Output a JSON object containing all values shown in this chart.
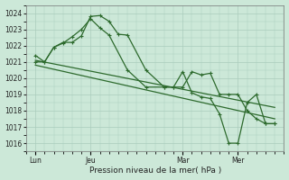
{
  "bg_color": "#cce8d8",
  "grid_color": "#aaccbc",
  "line_color": "#2d6a2d",
  "xlabel": "Pression niveau de la mer( hPa )",
  "ylim": [
    1015.5,
    1024.5
  ],
  "yticks": [
    1016,
    1017,
    1018,
    1019,
    1020,
    1021,
    1022,
    1023,
    1024
  ],
  "xtick_labels": [
    "Lun",
    "Jeu",
    "Mar",
    "Mer"
  ],
  "xtick_positions": [
    0,
    3,
    8,
    11
  ],
  "xlim": [
    -0.5,
    13.5
  ],
  "s1_x": [
    0,
    0.5,
    1,
    1.5,
    2,
    2.5,
    3,
    3.5,
    4,
    4.5,
    5,
    6,
    7,
    7.5,
    8,
    8.5,
    9,
    9.5,
    10,
    10.5,
    11,
    11.5,
    12,
    12.5,
    13
  ],
  "s1_y": [
    1021.4,
    1021.0,
    1021.9,
    1022.2,
    1022.2,
    1022.6,
    1023.8,
    1023.85,
    1023.5,
    1022.7,
    1022.65,
    1020.5,
    1019.45,
    1019.45,
    1019.45,
    1020.4,
    1020.2,
    1020.3,
    1019.0,
    1019.0,
    1019.0,
    1018.0,
    1017.5,
    1017.2,
    1017.2
  ],
  "s2_x": [
    0,
    0.5,
    1,
    1.5,
    2,
    2.5,
    3,
    3.5,
    4,
    5,
    6,
    7,
    7.5,
    8,
    8.5,
    9,
    9.5,
    10,
    10.5,
    11,
    11.5,
    12,
    12.5,
    13
  ],
  "s2_y": [
    1021.0,
    1021.0,
    1021.9,
    1022.15,
    1022.55,
    1023.0,
    1023.65,
    1023.1,
    1022.65,
    1020.5,
    1019.45,
    1019.45,
    1019.45,
    1020.4,
    1019.1,
    1018.85,
    1018.75,
    1017.8,
    1016.0,
    1016.0,
    1018.5,
    1019.0,
    1017.2,
    1017.2
  ],
  "trend1_x": [
    0,
    13
  ],
  "trend1_y": [
    1021.1,
    1018.2
  ],
  "trend2_x": [
    0,
    13
  ],
  "trend2_y": [
    1020.8,
    1017.5
  ]
}
